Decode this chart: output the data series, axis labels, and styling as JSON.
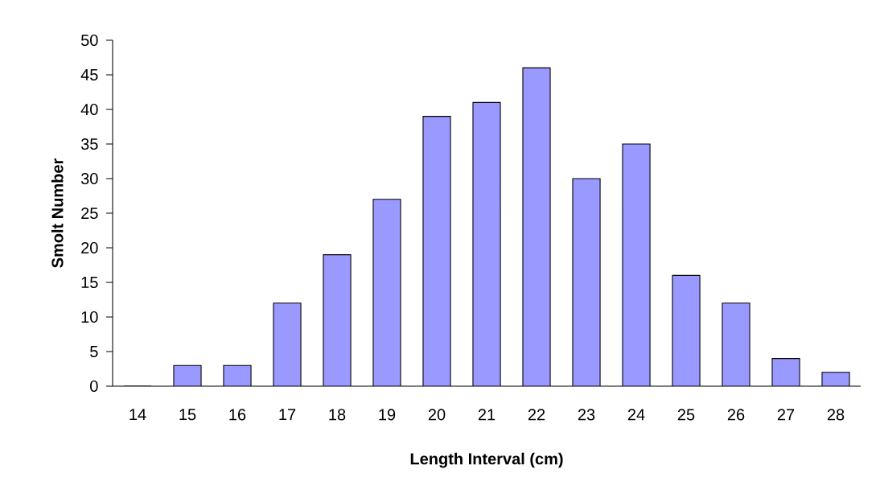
{
  "chart_data": {
    "type": "bar",
    "xlabel": "Length Interval (cm)",
    "ylabel": "Smolt Number",
    "categories": [
      "14",
      "15",
      "16",
      "17",
      "18",
      "19",
      "20",
      "21",
      "22",
      "23",
      "24",
      "25",
      "26",
      "27",
      "28"
    ],
    "values": [
      0,
      3,
      3,
      12,
      19,
      27,
      39,
      41,
      46,
      30,
      35,
      16,
      12,
      4,
      2
    ],
    "color": "#9999ff",
    "ylim": [
      0,
      50
    ],
    "yticks": [
      0,
      5,
      10,
      15,
      20,
      25,
      30,
      35,
      40,
      45,
      50
    ]
  }
}
